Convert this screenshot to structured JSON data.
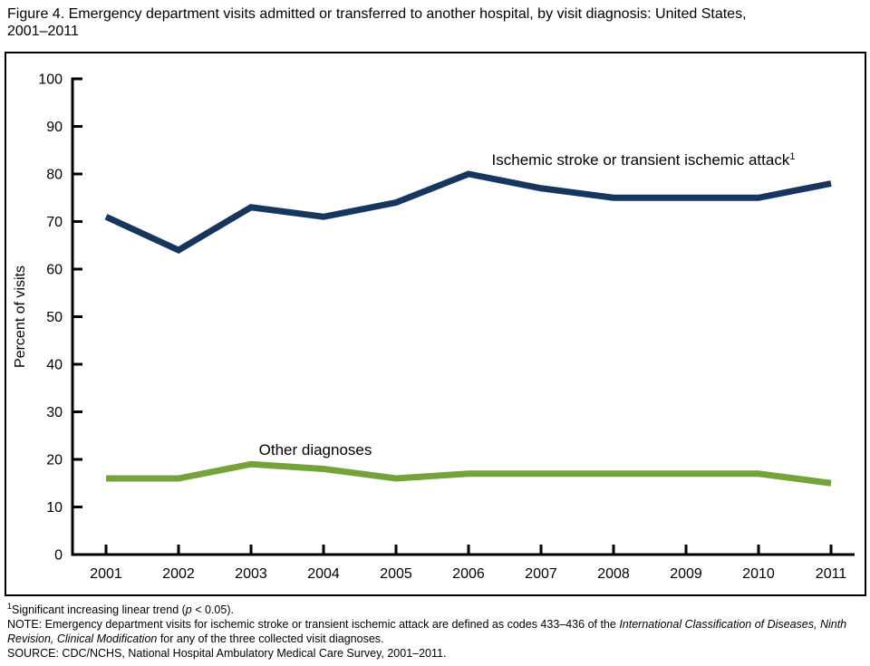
{
  "page": {
    "title_line1": "Figure 4. Emergency department visits admitted or transferred to another hospital, by visit diagnosis: United States,",
    "title_line2": "2001–2011"
  },
  "chart_data": {
    "type": "line",
    "title": "Figure 4. Emergency department visits admitted or transferred to another hospital, by visit diagnosis: United States, 2001–2011",
    "x": [
      2001,
      2002,
      2003,
      2004,
      2005,
      2006,
      2007,
      2008,
      2009,
      2010,
      2011
    ],
    "xlabel": "",
    "ylabel": "Percent of visits",
    "ylim": [
      0,
      100
    ],
    "ytick_step": 10,
    "grid": false,
    "legend_position": "inline-annotations",
    "axis_color": "#000000",
    "series": [
      {
        "name": "Ischemic stroke or transient ischemic attack",
        "footnote_marker": "1",
        "color": "#17365D",
        "values": [
          71,
          64,
          73,
          71,
          74,
          80,
          77,
          75,
          75,
          75,
          78
        ]
      },
      {
        "name": "Other diagnoses",
        "footnote_marker": "",
        "color": "#76A23B",
        "values": [
          16,
          16,
          19,
          18,
          16,
          17,
          17,
          17,
          17,
          17,
          15
        ]
      }
    ],
    "annotations": [
      {
        "series": 0,
        "text": "Ischemic stroke or transient ischemic attack",
        "marker": "1"
      },
      {
        "series": 1,
        "text": "Other diagnoses",
        "marker": ""
      }
    ]
  },
  "footnotes": {
    "fn1_marker": "1",
    "fn1_before": "Significant increasing linear trend (",
    "fn1_italic": "p",
    "fn1_after": " < 0.05).",
    "note_before": "NOTE: Emergency department visits for ischemic stroke or transient ischemic attack are defined as codes 433–436 of the ",
    "note_italic": "International Classification of Diseases, Ninth Revision, Clinical Modification",
    "note_after": " for any of the three collected visit diagnoses.",
    "source": "SOURCE: CDC/NCHS, National Hospital Ambulatory Medical Care Survey, 2001–2011."
  }
}
